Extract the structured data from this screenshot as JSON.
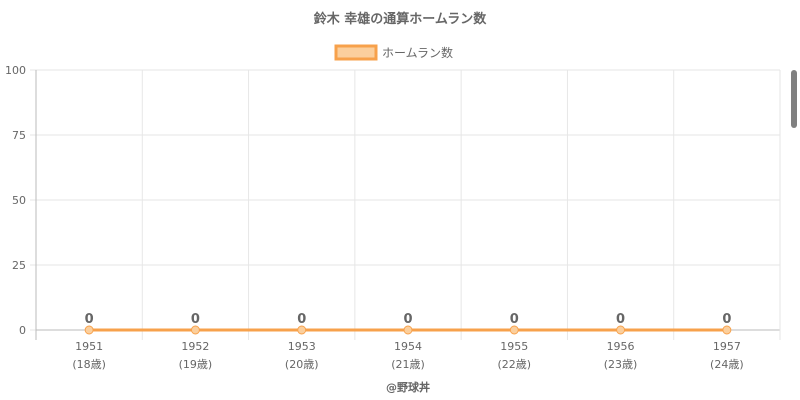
{
  "chart_data": {
    "type": "line",
    "title": "鈴木 幸雄の通算ホームラン数",
    "categories": [
      "1951",
      "1952",
      "1953",
      "1954",
      "1955",
      "1956",
      "1957"
    ],
    "ages": [
      "(18歳)",
      "(19歳)",
      "(20歳)",
      "(21歳)",
      "(22歳)",
      "(23歳)",
      "(24歳)"
    ],
    "series": [
      {
        "name": "ホームラン数",
        "values": [
          0,
          0,
          0,
          0,
          0,
          0,
          0
        ],
        "color": "#f7a14b",
        "fill": "#fbcf9d"
      }
    ],
    "ylim": [
      0,
      100
    ],
    "yticks": [
      0,
      25,
      50,
      75,
      100
    ],
    "grid": true,
    "legend": "top-center",
    "data_labels": true
  },
  "footer": {
    "credit": "@野球丼"
  }
}
